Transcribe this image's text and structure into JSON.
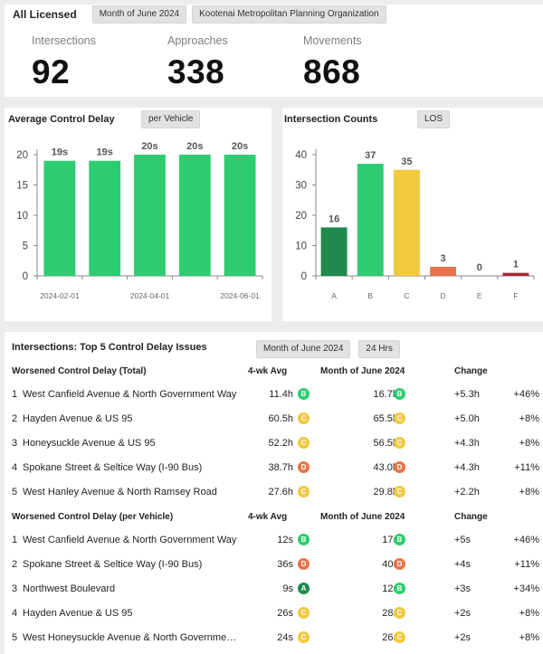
{
  "header": {
    "title": "All Licensed",
    "period_chip": "Month of June 2024",
    "org_chip": "Kootenai Metropolitan Planning Organization"
  },
  "stats": [
    {
      "label": "Intersections",
      "value": "92"
    },
    {
      "label": "Approaches",
      "value": "338"
    },
    {
      "label": "Movements",
      "value": "868"
    }
  ],
  "colors": {
    "A": "#1f8a4c",
    "B": "#2ecc71",
    "C": "#f0c93f",
    "D": "#e8734a",
    "E": "#c0392b",
    "F": "#a32638"
  },
  "delay_card": {
    "title": "Average Control Delay",
    "chip": "per Vehicle"
  },
  "counts_card": {
    "title": "Intersection Counts",
    "chip": "LOS"
  },
  "chart_data": [
    {
      "type": "bar",
      "title": "Average Control Delay",
      "categories": [
        "2024-02-01",
        "2024-03-01",
        "2024-04-01",
        "2024-05-01",
        "2024-06-01"
      ],
      "x_tick_labels": [
        "2024-02-01",
        "",
        "2024-04-01",
        "",
        "2024-06-01"
      ],
      "values": [
        19,
        19,
        20,
        20,
        20
      ],
      "data_labels": [
        "19s",
        "19s",
        "20s",
        "20s",
        "20s"
      ],
      "ylim": [
        0,
        20
      ],
      "yticks": [
        0,
        5,
        10,
        15,
        20
      ],
      "color": "#2ecc71",
      "grid": false
    },
    {
      "type": "bar",
      "title": "Intersection Counts",
      "categories": [
        "A",
        "B",
        "C",
        "D",
        "E",
        "F"
      ],
      "values": [
        16,
        37,
        35,
        3,
        0,
        1
      ],
      "colors": [
        "#1f8a4c",
        "#2ecc71",
        "#f0c93f",
        "#e8734a",
        "#c0392b",
        "#a32638"
      ],
      "ylim": [
        0,
        40
      ],
      "yticks": [
        0,
        10,
        20,
        30,
        40
      ],
      "grid": false
    }
  ],
  "table": {
    "title": "Intersections: Top 5 Control Delay Issues",
    "chips": [
      "Month of June 2024",
      "24 Hrs"
    ],
    "sections": [
      {
        "heading": "Worsened Control Delay (Total)",
        "col_avg": "4-wk Avg",
        "col_month": "Month of June 2024",
        "col_change": "Change",
        "rows": [
          {
            "rank": "1",
            "name": "West Canfield Avenue & North Government Way",
            "avg": "11.4h",
            "avg_los": "B",
            "month": "16.7h",
            "month_los": "B",
            "change": "+5.3h",
            "pct": "+46%"
          },
          {
            "rank": "2",
            "name": "Hayden Avenue & US 95",
            "avg": "60.5h",
            "avg_los": "C",
            "month": "65.5h",
            "month_los": "C",
            "change": "+5.0h",
            "pct": "+8%"
          },
          {
            "rank": "3",
            "name": "Honeysuckle Avenue & US 95",
            "avg": "52.2h",
            "avg_los": "C",
            "month": "56.5h",
            "month_los": "C",
            "change": "+4.3h",
            "pct": "+8%"
          },
          {
            "rank": "4",
            "name": "Spokane Street & Seltice Way (I-90 Bus)",
            "avg": "38.7h",
            "avg_los": "D",
            "month": "43.0h",
            "month_los": "D",
            "change": "+4.3h",
            "pct": "+11%"
          },
          {
            "rank": "5",
            "name": "West Hanley Avenue & North Ramsey Road",
            "avg": "27.6h",
            "avg_los": "C",
            "month": "29.8h",
            "month_los": "C",
            "change": "+2.2h",
            "pct": "+8%"
          }
        ]
      },
      {
        "heading": "Worsened Control Delay (per Vehicle)",
        "col_avg": "4-wk Avg",
        "col_month": "Month of June 2024",
        "col_change": "Change",
        "rows": [
          {
            "rank": "1",
            "name": "West Canfield Avenue & North Government Way",
            "avg": "12s",
            "avg_los": "B",
            "month": "17s",
            "month_los": "B",
            "change": "+5s",
            "pct": "+46%"
          },
          {
            "rank": "2",
            "name": "Spokane Street & Seltice Way (I-90 Bus)",
            "avg": "36s",
            "avg_los": "D",
            "month": "40s",
            "month_los": "D",
            "change": "+4s",
            "pct": "+11%"
          },
          {
            "rank": "3",
            "name": "Northwest Boulevard",
            "avg": "9s",
            "avg_los": "A",
            "month": "12s",
            "month_los": "B",
            "change": "+3s",
            "pct": "+34%"
          },
          {
            "rank": "4",
            "name": "Hayden Avenue & US 95",
            "avg": "26s",
            "avg_los": "C",
            "month": "28s",
            "month_los": "C",
            "change": "+2s",
            "pct": "+8%"
          },
          {
            "rank": "5",
            "name": "West Honeysuckle Avenue & North Governmen...",
            "avg": "24s",
            "avg_los": "C",
            "month": "26s",
            "month_los": "C",
            "change": "+2s",
            "pct": "+8%"
          }
        ]
      }
    ]
  }
}
